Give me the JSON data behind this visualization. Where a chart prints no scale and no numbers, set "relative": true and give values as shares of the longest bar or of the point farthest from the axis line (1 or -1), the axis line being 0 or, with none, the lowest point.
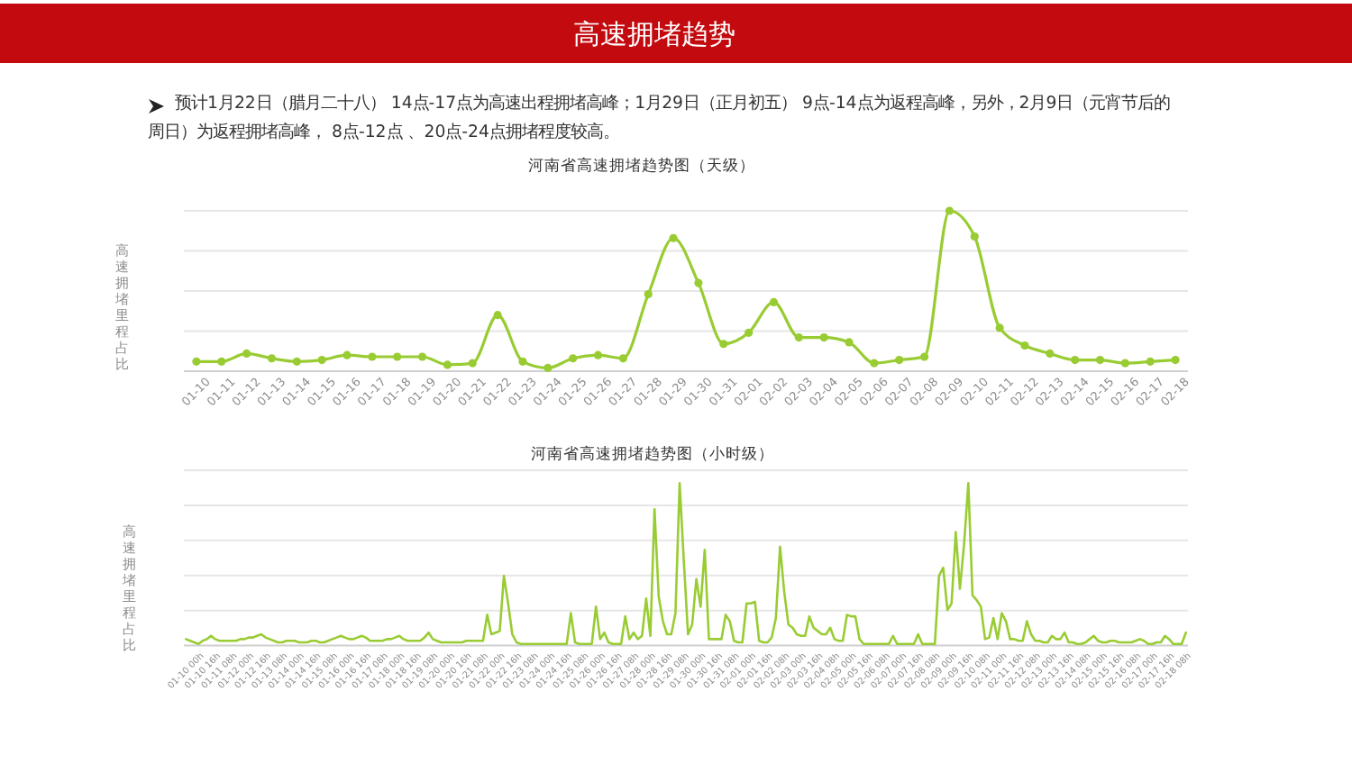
{
  "chart_data": [
    {
      "type": "other",
      "title": "高速拥堵趋势",
      "annotations": [
        "预计1月22日（腊月二十八） 14点-17点为高速出程拥堵高峰；1月29日（正月初五） 9点-14点为返程高峰，另外，2月9日（元宵节后的周日）为返程拥堵高峰， 8点-12点 、20点-24点拥堵程度较高。"
      ]
    },
    {
      "type": "line",
      "title": "河南省高速拥堵趋势图（天级）",
      "ylabel": "高速拥堵里程占比",
      "relative": true,
      "grid": "y",
      "marker": "circle",
      "categories": [
        "01-10",
        "01-11",
        "01-12",
        "01-13",
        "01-14",
        "01-15",
        "01-16",
        "01-17",
        "01-18",
        "01-19",
        "01-20",
        "01-21",
        "01-22",
        "01-23",
        "01-24",
        "01-25",
        "01-26",
        "01-27",
        "01-28",
        "01-29",
        "01-30",
        "01-31",
        "02-01",
        "02-02",
        "02-03",
        "02-04",
        "02-05",
        "02-06",
        "02-07",
        "02-08",
        "02-09",
        "02-10",
        "02-11",
        "02-12",
        "02-13",
        "02-14",
        "02-15",
        "02-16",
        "02-17",
        "02-18"
      ],
      "series": [
        {
          "color": "#99cc33",
          "values": [
            0.06,
            0.06,
            0.11,
            0.08,
            0.06,
            0.07,
            0.1,
            0.09,
            0.09,
            0.09,
            0.04,
            0.05,
            0.35,
            0.06,
            0.02,
            0.08,
            0.1,
            0.08,
            0.48,
            0.83,
            0.55,
            0.17,
            0.24,
            0.43,
            0.21,
            0.21,
            0.18,
            0.05,
            0.07,
            0.09,
            1.0,
            0.84,
            0.27,
            0.16,
            0.11,
            0.07,
            0.07,
            0.05,
            0.06,
            0.07
          ]
        }
      ]
    },
    {
      "type": "line",
      "title": "河南省高速拥堵趋势图（小时级）",
      "ylabel": "高速拥堵里程占比",
      "relative": true,
      "grid": "y",
      "categories": [
        "01-10 00h",
        null,
        null,
        null,
        "01-10 16h",
        null,
        null,
        null,
        "01-11 08h",
        null,
        null,
        null,
        "01-12 00h",
        null,
        null,
        null,
        "01-12 16h",
        null,
        null,
        null,
        "01-13 08h",
        null,
        null,
        null,
        "01-14 00h",
        null,
        null,
        null,
        "01-14 16h",
        null,
        null,
        null,
        "01-15 08h",
        null,
        null,
        null,
        "01-16 00h",
        null,
        null,
        null,
        "01-16 16h",
        null,
        null,
        null,
        "01-17 08h",
        null,
        null,
        null,
        "01-18 00h",
        null,
        null,
        null,
        "01-18 16h",
        null,
        null,
        null,
        "01-19 08h",
        null,
        null,
        null,
        "01-20 00h",
        null,
        null,
        null,
        "01-20 16h",
        null,
        null,
        null,
        "01-21 08h",
        null,
        null,
        null,
        "01-22 00h",
        null,
        null,
        null,
        "01-22 16h",
        null,
        null,
        null,
        "01-23 08h",
        null,
        null,
        null,
        "01-24 00h",
        null,
        null,
        null,
        "01-24 16h",
        null,
        null,
        null,
        "01-25 08h",
        null,
        null,
        null,
        "01-26 00h",
        null,
        null,
        null,
        "01-26 16h",
        null,
        null,
        null,
        "01-27 08h",
        null,
        null,
        null,
        "01-28 00h",
        null,
        null,
        null,
        "01-28 16h",
        null,
        null,
        null,
        "01-29 08h",
        null,
        null,
        null,
        "01-30 00h",
        null,
        null,
        null,
        "01-30 16h",
        null,
        null,
        null,
        "01-31 08h",
        null,
        null,
        null,
        "02-01 00h",
        null,
        null,
        null,
        "02-01 16h",
        null,
        null,
        null,
        "02-02 08h",
        null,
        null,
        null,
        "02-03 00h",
        null,
        null,
        null,
        "02-03 16h",
        null,
        null,
        null,
        "02-04 08h",
        null,
        null,
        null,
        "02-05 00h",
        null,
        null,
        null,
        "02-05 16h",
        null,
        null,
        null,
        "02-06 08h",
        null,
        null,
        null,
        "02-07 00h",
        null,
        null,
        null,
        "02-07 16h",
        null,
        null,
        null,
        "02-08 08h",
        null,
        null,
        null,
        "02-09 00h",
        null,
        null,
        null,
        "02-09 16h",
        null,
        null,
        null,
        "02-10 08h",
        null,
        null,
        null,
        "02-11 00h",
        null,
        null,
        null,
        "02-11 16h",
        null,
        null,
        null,
        "02-12 08h",
        null,
        null,
        null,
        "02-13 00h",
        null,
        null,
        null,
        "02-13 16h",
        null,
        null,
        null,
        "02-14 08h",
        null,
        null,
        null,
        "02-15 00h",
        null,
        null,
        null,
        "02-15 16h",
        null,
        null,
        null,
        "02-16 08h",
        null,
        null,
        null,
        "02-17 00h",
        null,
        null,
        null,
        "02-17 16h",
        null,
        null,
        null,
        "02-18 08h",
        null,
        null,
        null
      ],
      "series": [
        {
          "color": "#99cc33",
          "values": [
            0.04,
            0.03,
            0.02,
            0.01,
            0.03,
            0.04,
            0.06,
            0.04,
            0.03,
            0.03,
            0.03,
            0.03,
            0.03,
            0.04,
            0.04,
            0.05,
            0.05,
            0.06,
            0.07,
            0.05,
            0.04,
            0.03,
            0.02,
            0.02,
            0.03,
            0.03,
            0.03,
            0.02,
            0.02,
            0.02,
            0.03,
            0.03,
            0.02,
            0.02,
            0.03,
            0.04,
            0.05,
            0.06,
            0.05,
            0.04,
            0.04,
            0.05,
            0.06,
            0.05,
            0.03,
            0.03,
            0.03,
            0.03,
            0.04,
            0.04,
            0.05,
            0.06,
            0.04,
            0.03,
            0.03,
            0.03,
            0.03,
            0.05,
            0.08,
            0.04,
            0.03,
            0.02,
            0.02,
            0.02,
            0.02,
            0.02,
            0.02,
            0.03,
            0.03,
            0.03,
            0.03,
            0.03,
            0.19,
            0.07,
            0.08,
            0.09,
            0.43,
            0.26,
            0.07,
            0.02,
            0.01,
            0.01,
            0.01,
            0.01,
            0.01,
            0.01,
            0.01,
            0.01,
            0.01,
            0.01,
            0.01,
            0.01,
            0.2,
            0.02,
            0.01,
            0.01,
            0.01,
            0.01,
            0.24,
            0.04,
            0.08,
            0.02,
            0.01,
            0.01,
            0.01,
            0.18,
            0.04,
            0.08,
            0.04,
            0.06,
            0.29,
            0.06,
            0.84,
            0.3,
            0.15,
            0.07,
            0.07,
            0.2,
            1.0,
            0.52,
            0.07,
            0.13,
            0.41,
            0.24,
            0.59,
            0.04,
            0.04,
            0.04,
            0.04,
            0.19,
            0.15,
            0.03,
            0.02,
            0.02,
            0.26,
            0.26,
            0.27,
            0.03,
            0.02,
            0.02,
            0.05,
            0.17,
            0.61,
            0.33,
            0.13,
            0.11,
            0.07,
            0.06,
            0.06,
            0.18,
            0.11,
            0.09,
            0.07,
            0.07,
            0.11,
            0.04,
            0.03,
            0.03,
            0.19,
            0.18,
            0.18,
            0.04,
            0.01,
            0.01,
            0.01,
            0.01,
            0.01,
            0.01,
            0.01,
            0.06,
            0.01,
            0.01,
            0.01,
            0.01,
            0.01,
            0.07,
            0.01,
            0.01,
            0.01,
            0.01,
            0.43,
            0.48,
            0.22,
            0.26,
            0.7,
            0.35,
            0.63,
            1.0,
            0.31,
            0.28,
            0.24,
            0.04,
            0.05,
            0.17,
            0.04,
            0.2,
            0.15,
            0.04,
            0.04,
            0.03,
            0.03,
            0.15,
            0.07,
            0.03,
            0.03,
            0.02,
            0.02,
            0.06,
            0.04,
            0.04,
            0.08,
            0.02,
            0.02,
            0.01,
            0.01,
            0.02,
            0.04,
            0.06,
            0.03,
            0.02,
            0.02,
            0.03,
            0.03,
            0.02,
            0.02,
            0.02,
            0.02,
            0.03,
            0.04,
            0.03,
            0.01,
            0.01,
            0.02,
            0.02,
            0.06,
            0.04,
            0.01,
            0.01,
            0.01,
            0.08
          ]
        }
      ]
    }
  ]
}
